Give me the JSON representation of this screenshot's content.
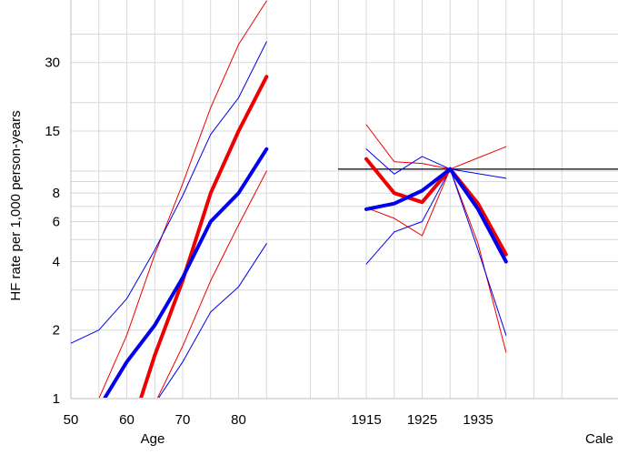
{
  "chart_data": {
    "type": "line",
    "ylabel": "HF rate per 1,000 person-years",
    "y_scale": "log",
    "ylim": [
      1,
      50
    ],
    "y_ticks": [
      1,
      2,
      4,
      6,
      8,
      15,
      30
    ],
    "y_tick_labels": [
      "1",
      "2",
      "4",
      "6",
      "8",
      "15",
      "30"
    ],
    "y_minor_gridlines": [
      3,
      5,
      7,
      9,
      10,
      20,
      40
    ],
    "grid": true,
    "reference_line": {
      "panel": "period",
      "y": 10.2,
      "color": "#000000"
    },
    "colors": {
      "red": "#ee0000",
      "blue": "#0000ee",
      "grid": "#d9d9d9"
    },
    "panels": [
      {
        "id": "age",
        "xlabel": "Age",
        "xlim": [
          50,
          86
        ],
        "x_ticks": [
          50,
          60,
          70,
          80
        ],
        "x_tick_labels": [
          "50",
          "60",
          "70",
          "80"
        ],
        "series": [
          {
            "color": "red",
            "width": 4,
            "points": [
              [
                59,
                0.6
              ],
              [
                62.5,
                1.0
              ],
              [
                65,
                1.55
              ],
              [
                70,
                3.3
              ],
              [
                75,
                8.0
              ],
              [
                80,
                15.0
              ],
              [
                85,
                26.0
              ]
            ]
          },
          {
            "color": "red",
            "width": 1,
            "points": [
              [
                55,
                1.0
              ],
              [
                60,
                1.9
              ],
              [
                65,
                4.3
              ],
              [
                70,
                8.8
              ],
              [
                75,
                19.0
              ],
              [
                80,
                36.0
              ],
              [
                85,
                56.0
              ]
            ]
          },
          {
            "color": "red",
            "width": 1,
            "points": [
              [
                65,
                0.95
              ],
              [
                70,
                1.7
              ],
              [
                75,
                3.3
              ],
              [
                80,
                5.8
              ],
              [
                85,
                10.0
              ]
            ]
          },
          {
            "color": "blue",
            "width": 4,
            "points": [
              [
                56,
                1.0
              ],
              [
                60,
                1.45
              ],
              [
                65,
                2.1
              ],
              [
                70,
                3.4
              ],
              [
                75,
                6.0
              ],
              [
                80,
                8.0
              ],
              [
                85,
                12.5
              ]
            ]
          },
          {
            "color": "blue",
            "width": 1,
            "points": [
              [
                50,
                1.75
              ],
              [
                55,
                2.0
              ],
              [
                60,
                2.75
              ],
              [
                65,
                4.5
              ],
              [
                70,
                7.8
              ],
              [
                75,
                14.5
              ],
              [
                80,
                21.0
              ],
              [
                85,
                37.0
              ]
            ]
          },
          {
            "color": "blue",
            "width": 1,
            "points": [
              [
                65,
                0.95
              ],
              [
                70,
                1.45
              ],
              [
                75,
                2.4
              ],
              [
                80,
                3.1
              ],
              [
                85,
                4.8
              ]
            ]
          }
        ]
      },
      {
        "id": "period",
        "xlabel": "Cale",
        "xlim": [
          1905,
          1950
        ],
        "x_ticks": [
          1915,
          1925,
          1935
        ],
        "x_tick_labels": [
          "1915",
          "1925",
          "1935"
        ],
        "series": [
          {
            "color": "red",
            "width": 4,
            "points": [
              [
                1915,
                11.3
              ],
              [
                1920,
                8.0
              ],
              [
                1925,
                7.3
              ],
              [
                1930,
                10.2
              ],
              [
                1935,
                7.2
              ],
              [
                1940,
                4.3
              ]
            ]
          },
          {
            "color": "red",
            "width": 1,
            "points": [
              [
                1915,
                16.0
              ],
              [
                1920,
                11.0
              ],
              [
                1925,
                10.8
              ],
              [
                1930,
                10.2
              ],
              [
                1940,
                12.8
              ]
            ]
          },
          {
            "color": "red",
            "width": 1,
            "points": [
              [
                1915,
                6.9
              ],
              [
                1920,
                6.2
              ],
              [
                1925,
                5.2
              ],
              [
                1930,
                10.2
              ],
              [
                1935,
                4.8
              ],
              [
                1940,
                1.6
              ]
            ]
          },
          {
            "color": "blue",
            "width": 4,
            "points": [
              [
                1915,
                6.8
              ],
              [
                1920,
                7.2
              ],
              [
                1925,
                8.2
              ],
              [
                1930,
                10.2
              ],
              [
                1935,
                6.8
              ],
              [
                1940,
                4.0
              ]
            ]
          },
          {
            "color": "blue",
            "width": 1,
            "points": [
              [
                1915,
                12.5
              ],
              [
                1920,
                9.7
              ],
              [
                1925,
                11.6
              ],
              [
                1930,
                10.2
              ],
              [
                1940,
                9.3
              ]
            ]
          },
          {
            "color": "blue",
            "width": 1,
            "points": [
              [
                1915,
                3.9
              ],
              [
                1920,
                5.4
              ],
              [
                1925,
                6.0
              ],
              [
                1930,
                10.2
              ],
              [
                1935,
                4.5
              ],
              [
                1940,
                1.9
              ]
            ]
          }
        ]
      }
    ]
  }
}
